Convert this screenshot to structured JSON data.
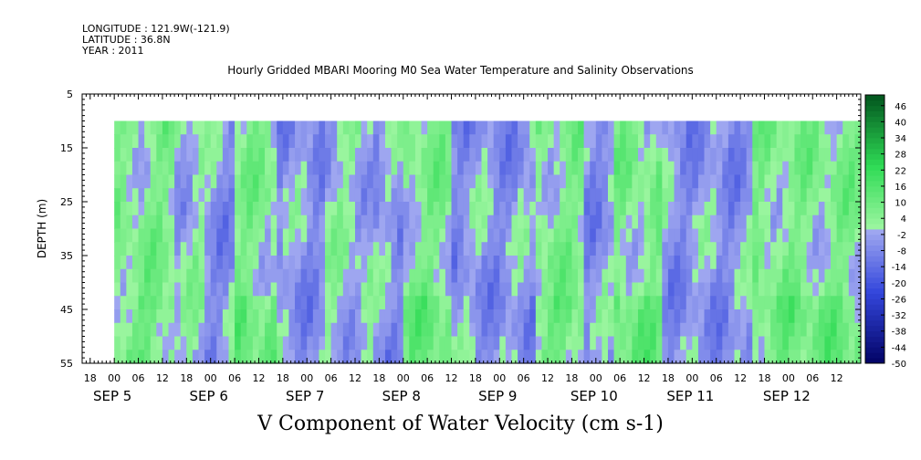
{
  "header": {
    "longitude": "LONGITUDE : 121.9W(-121.9)",
    "latitude": "LATITUDE : 36.8N",
    "year": "YEAR : 2011"
  },
  "chart_data": {
    "type": "heatmap",
    "title": "Hourly Gridded MBARI Mooring M0 Sea Water Temperature and Salinity Observations",
    "variable_label": "V Component of Water Velocity (cm s-1)",
    "ylabel": "DEPTH (m)",
    "y_ticks": [
      "5",
      "15",
      "25",
      "35",
      "45",
      "55"
    ],
    "y_tick_values": [
      5,
      15,
      25,
      35,
      45,
      55
    ],
    "ylim": [
      5,
      55
    ],
    "y_inverted": true,
    "data_depth_range": [
      10,
      55
    ],
    "x_hour_ticks": [
      "18",
      "00",
      "06",
      "12",
      "18",
      "00",
      "06",
      "12",
      "18",
      "00",
      "06",
      "12",
      "18",
      "00",
      "06",
      "12",
      "18",
      "00",
      "06",
      "12",
      "18",
      "00",
      "06",
      "12",
      "18",
      "00",
      "06",
      "12",
      "18",
      "00",
      "06",
      "12"
    ],
    "x_hour_tick_values": [
      -6,
      0,
      6,
      12,
      18,
      24,
      30,
      36,
      42,
      48,
      54,
      60,
      66,
      72,
      78,
      84,
      90,
      96,
      102,
      108,
      114,
      120,
      126,
      132,
      138,
      144,
      150,
      156,
      162,
      168,
      174,
      180
    ],
    "xlim_hours_from_sep5": [
      -8,
      186
    ],
    "data_time_range_hours_from_sep5": [
      0,
      186
    ],
    "x_day_labels": [
      "SEP  5",
      "SEP  6",
      "SEP  7",
      "SEP  8",
      "SEP  9",
      "SEP 10",
      "SEP 11",
      "SEP 12"
    ],
    "x_day_label_values": [
      0,
      24,
      48,
      72,
      96,
      120,
      144,
      168
    ],
    "colorbar_ticks": [
      "46",
      "40",
      "34",
      "28",
      "22",
      "16",
      "10",
      "4",
      "-2",
      "-8",
      "-14",
      "-20",
      "-26",
      "-32",
      "-38",
      "-44",
      "-50"
    ],
    "colorbar_range": [
      -50,
      50
    ],
    "colorbar_step": 2,
    "grid": false,
    "legend_position": "right colorbar",
    "colors": {
      "pos_light": "#99f59e",
      "pos_mid": "#2fdb55",
      "pos_dark": "#00501c",
      "neg_light": "#9ea6f0",
      "neg_mid": "#3346dc",
      "neg_dark": "#000060"
    },
    "dominant_sign_by_hour": [
      [
        0,
        6,
        "pos"
      ],
      [
        6,
        14,
        "pos"
      ],
      [
        14,
        22,
        "mixed"
      ],
      [
        22,
        30,
        "neg"
      ],
      [
        30,
        40,
        "pos"
      ],
      [
        40,
        52,
        "neg"
      ],
      [
        52,
        64,
        "mixed"
      ],
      [
        64,
        72,
        "neg"
      ],
      [
        72,
        84,
        "pos"
      ],
      [
        84,
        96,
        "neg"
      ],
      [
        96,
        104,
        "neg"
      ],
      [
        104,
        116,
        "pos"
      ],
      [
        116,
        124,
        "neg"
      ],
      [
        124,
        136,
        "pos"
      ],
      [
        136,
        148,
        "neg"
      ],
      [
        148,
        158,
        "neg"
      ],
      [
        158,
        168,
        "pos"
      ],
      [
        168,
        186,
        "pos"
      ]
    ]
  }
}
